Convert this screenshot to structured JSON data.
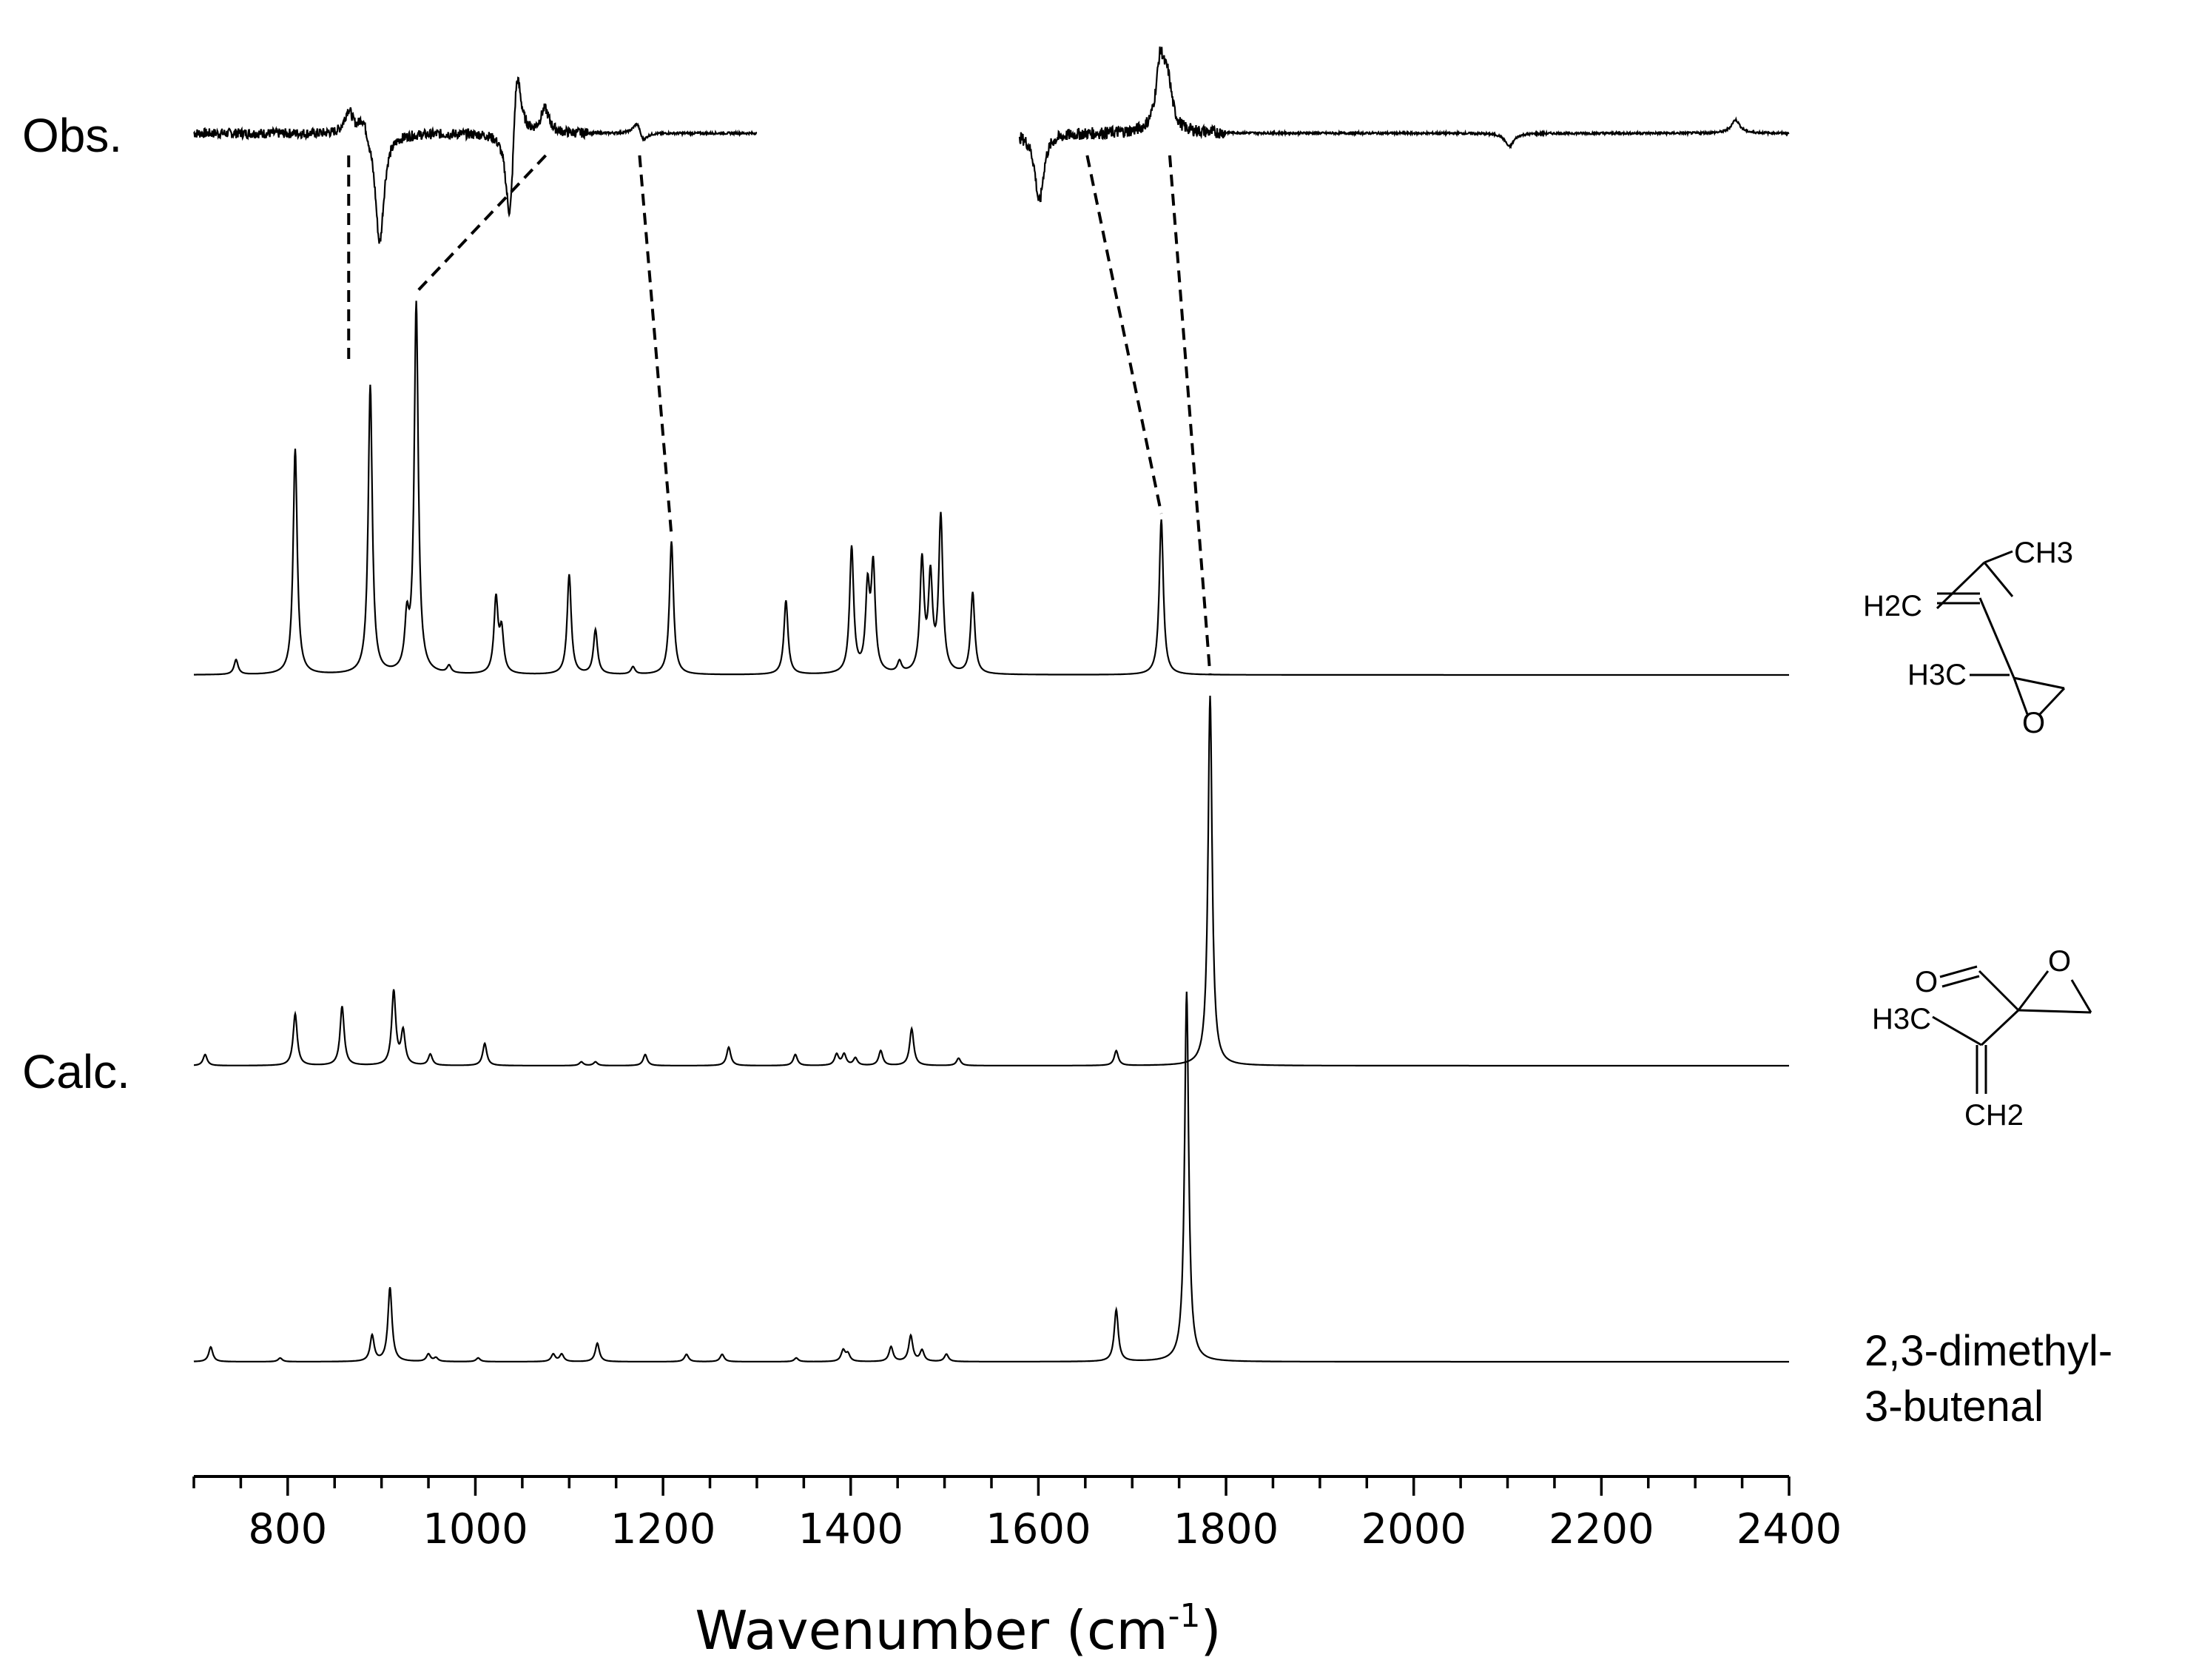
{
  "chart_data": {
    "type": "line",
    "xlabel_main": "Wavenumber (cm",
    "xlabel_sup": "-1",
    "xlabel_tail": ")",
    "xlim": [
      700,
      2400
    ],
    "xticks": [
      800,
      1000,
      1200,
      1400,
      1600,
      1800,
      2000,
      2200,
      2400
    ],
    "grid": false,
    "legend": "none",
    "panel_labels": {
      "observed": "Obs.",
      "calculated": "Calc."
    },
    "series": [
      {
        "role": "observed",
        "segments": [
          [
            700,
            1300
          ],
          [
            1580,
            2400
          ]
        ],
        "peaks": [
          {
            "x": 865,
            "h": 0.22
          },
          {
            "x": 880,
            "h": 0.18
          },
          {
            "x": 898,
            "h": -1.0
          },
          {
            "x": 1037,
            "h": -1.0
          },
          {
            "x": 1044,
            "h": 0.82
          },
          {
            "x": 1074,
            "h": 0.22
          },
          {
            "x": 1173,
            "h": 0.14
          },
          {
            "x": 1178,
            "h": -0.12
          },
          {
            "x": 1601,
            "h": -0.62
          },
          {
            "x": 1730,
            "h": 0.62
          },
          {
            "x": 1738,
            "h": 0.38
          },
          {
            "x": 2102,
            "h": -0.12
          },
          {
            "x": 2343,
            "h": 0.12
          }
        ]
      },
      {
        "role": "calculated",
        "compound": "2-methyl-2-(prop-1-en-2-yl)oxirane",
        "structure_text": [
          "CH3",
          "H2C",
          "H3C",
          "O"
        ],
        "peaks": [
          {
            "x": 745,
            "h": 0.04
          },
          {
            "x": 808,
            "h": 0.61
          },
          {
            "x": 888,
            "h": 0.78
          },
          {
            "x": 927,
            "h": 0.13
          },
          {
            "x": 937,
            "h": 1.0
          },
          {
            "x": 972,
            "h": 0.02
          },
          {
            "x": 1022,
            "h": 0.2
          },
          {
            "x": 1028,
            "h": 0.11
          },
          {
            "x": 1100,
            "h": 0.27
          },
          {
            "x": 1128,
            "h": 0.12
          },
          {
            "x": 1168,
            "h": 0.02
          },
          {
            "x": 1209,
            "h": 0.36
          },
          {
            "x": 1331,
            "h": 0.2
          },
          {
            "x": 1401,
            "h": 0.34
          },
          {
            "x": 1418,
            "h": 0.22
          },
          {
            "x": 1424,
            "h": 0.28
          },
          {
            "x": 1452,
            "h": 0.03
          },
          {
            "x": 1476,
            "h": 0.3
          },
          {
            "x": 1485,
            "h": 0.25
          },
          {
            "x": 1496,
            "h": 0.42
          },
          {
            "x": 1530,
            "h": 0.22
          },
          {
            "x": 1731,
            "h": 0.42
          }
        ]
      },
      {
        "role": "calculated",
        "compound": "2-(prop-1-en-2-yl)oxirane-2-carbaldehyde",
        "structure_text": [
          "O",
          "O",
          "H3C",
          "CH2"
        ],
        "peaks": [
          {
            "x": 712,
            "h": 0.03
          },
          {
            "x": 808,
            "h": 0.14
          },
          {
            "x": 858,
            "h": 0.16
          },
          {
            "x": 913,
            "h": 0.2
          },
          {
            "x": 923,
            "h": 0.09
          },
          {
            "x": 952,
            "h": 0.03
          },
          {
            "x": 1010,
            "h": 0.06
          },
          {
            "x": 1113,
            "h": 0.01
          },
          {
            "x": 1128,
            "h": 0.01
          },
          {
            "x": 1181,
            "h": 0.03
          },
          {
            "x": 1270,
            "h": 0.05
          },
          {
            "x": 1341,
            "h": 0.03
          },
          {
            "x": 1385,
            "h": 0.03
          },
          {
            "x": 1393,
            "h": 0.03
          },
          {
            "x": 1405,
            "h": 0.02
          },
          {
            "x": 1432,
            "h": 0.04
          },
          {
            "x": 1465,
            "h": 0.1
          },
          {
            "x": 1515,
            "h": 0.02
          },
          {
            "x": 1683,
            "h": 0.04
          },
          {
            "x": 1783,
            "h": 1.0
          }
        ]
      },
      {
        "role": "calculated",
        "compound_label": [
          "2,3-dimethyl-",
          "3-butenal"
        ],
        "peaks": [
          {
            "x": 718,
            "h": 0.04
          },
          {
            "x": 792,
            "h": 0.01
          },
          {
            "x": 890,
            "h": 0.07
          },
          {
            "x": 909,
            "h": 0.2
          },
          {
            "x": 950,
            "h": 0.02
          },
          {
            "x": 958,
            "h": 0.01
          },
          {
            "x": 1003,
            "h": 0.01
          },
          {
            "x": 1083,
            "h": 0.02
          },
          {
            "x": 1092,
            "h": 0.02
          },
          {
            "x": 1130,
            "h": 0.05
          },
          {
            "x": 1225,
            "h": 0.02
          },
          {
            "x": 1263,
            "h": 0.02
          },
          {
            "x": 1342,
            "h": 0.01
          },
          {
            "x": 1392,
            "h": 0.03
          },
          {
            "x": 1397,
            "h": 0.02
          },
          {
            "x": 1443,
            "h": 0.04
          },
          {
            "x": 1464,
            "h": 0.07
          },
          {
            "x": 1476,
            "h": 0.03
          },
          {
            "x": 1502,
            "h": 0.02
          },
          {
            "x": 1683,
            "h": 0.14
          },
          {
            "x": 1758,
            "h": 1.0
          }
        ]
      }
    ],
    "correlations": [
      {
        "obs_x": 865,
        "calc_x": 865
      },
      {
        "obs_x": 1075,
        "calc_x": 937
      },
      {
        "obs_x": 1175,
        "calc_x": 1209
      },
      {
        "obs_x": 1652,
        "calc_x": 1731
      },
      {
        "obs_x": 1740,
        "calc_x": 1783
      }
    ]
  }
}
